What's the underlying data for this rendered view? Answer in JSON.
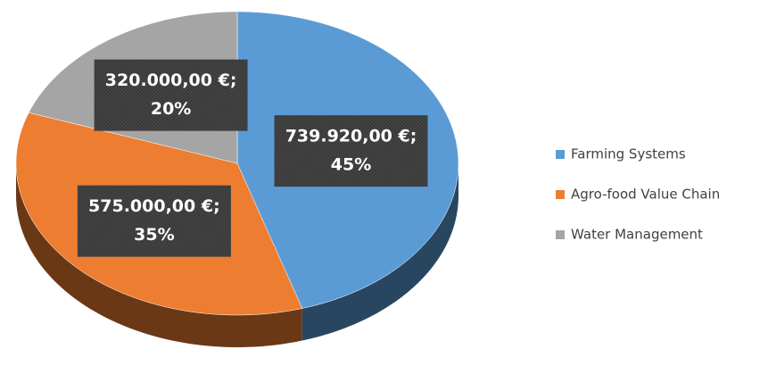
{
  "chart_data": {
    "type": "pie",
    "categories": [
      "Farming Systems",
      "Agro-food Value Chain",
      "Water Management"
    ],
    "values": [
      739920,
      575000,
      320000
    ],
    "value_labels": [
      "739.920,00 €;",
      "575.000,00 €;",
      "320.000,00 €;"
    ],
    "percent_labels": [
      "45%",
      "35%",
      "20%"
    ],
    "colors": [
      "#5b9bd5",
      "#ed7d31",
      "#a5a5a5"
    ],
    "legend": "right"
  }
}
